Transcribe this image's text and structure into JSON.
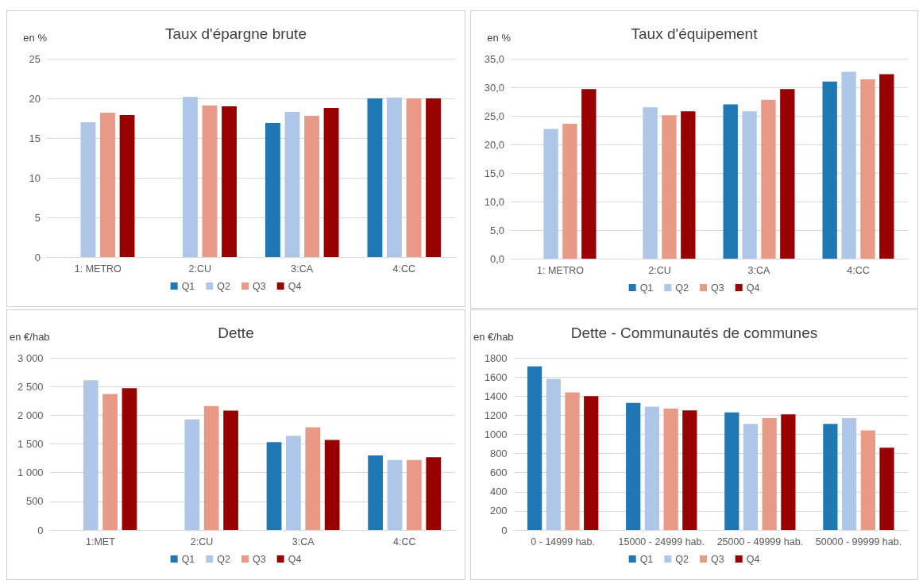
{
  "chart_data": [
    {
      "type": "bar",
      "title": "Taux d'épargne brute",
      "ylabel": "en %",
      "categories": [
        "1: METRO",
        "2:CU",
        "3:CA",
        "4:CC"
      ],
      "series": [
        {
          "name": "Q1",
          "color": "#1f77b4",
          "values": [
            null,
            null,
            16.9,
            20.0
          ]
        },
        {
          "name": "Q2",
          "color": "#aec7e8",
          "values": [
            17.0,
            20.2,
            18.3,
            20.1
          ]
        },
        {
          "name": "Q3",
          "color": "#e99a86",
          "values": [
            18.2,
            19.1,
            17.8,
            20.0
          ]
        },
        {
          "name": "Q4",
          "color": "#990000",
          "values": [
            17.9,
            19.0,
            18.8,
            20.0
          ]
        }
      ],
      "ylim": [
        0,
        25
      ],
      "yticks": [
        0,
        5,
        10,
        15,
        20,
        25
      ],
      "grid": "y",
      "legend": "bottom"
    },
    {
      "type": "bar",
      "title": "Taux d'équipement",
      "ylabel": "en %",
      "categories": [
        "1: METRO",
        "2:CU",
        "3:CA",
        "4:CC"
      ],
      "series": [
        {
          "name": "Q1",
          "color": "#1f77b4",
          "values": [
            null,
            null,
            27.0,
            31.0
          ]
        },
        {
          "name": "Q2",
          "color": "#aec7e8",
          "values": [
            22.7,
            26.5,
            25.8,
            32.7
          ]
        },
        {
          "name": "Q3",
          "color": "#e99a86",
          "values": [
            23.6,
            25.1,
            27.8,
            31.4
          ]
        },
        {
          "name": "Q4",
          "color": "#990000",
          "values": [
            29.7,
            25.8,
            29.7,
            32.3
          ]
        }
      ],
      "ylim": [
        0,
        35
      ],
      "yticks": [
        {
          "value": 0,
          "label": "0,0"
        },
        {
          "value": 5,
          "label": "5,0"
        },
        {
          "value": 10,
          "label": "10,0"
        },
        {
          "value": 15,
          "label": "15,0"
        },
        {
          "value": 20,
          "label": "20,0"
        },
        {
          "value": 25,
          "label": "25,0"
        },
        {
          "value": 30,
          "label": "30,0"
        },
        {
          "value": 35,
          "label": "35,0"
        }
      ],
      "grid": "y",
      "legend": "bottom"
    },
    {
      "type": "bar",
      "title": "Dette",
      "ylabel": "en €/hab",
      "categories": [
        "1:MET",
        "2:CU",
        "3:CA",
        "4:CC"
      ],
      "series": [
        {
          "name": "Q1",
          "color": "#1f77b4",
          "values": [
            null,
            null,
            1530,
            1300
          ]
        },
        {
          "name": "Q2",
          "color": "#aec7e8",
          "values": [
            2610,
            1930,
            1640,
            1220
          ]
        },
        {
          "name": "Q3",
          "color": "#e99a86",
          "values": [
            2370,
            2160,
            1790,
            1220
          ]
        },
        {
          "name": "Q4",
          "color": "#990000",
          "values": [
            2470,
            2080,
            1570,
            1270
          ]
        }
      ],
      "ylim": [
        0,
        3000
      ],
      "yticks": [
        0,
        500,
        {
          "value": 1000,
          "label": "1 000"
        },
        {
          "value": 1500,
          "label": "1 500"
        },
        {
          "value": 2000,
          "label": "2 000"
        },
        {
          "value": 2500,
          "label": "2 500"
        },
        {
          "value": 3000,
          "label": "3 000"
        }
      ],
      "grid": "y",
      "legend": "bottom"
    },
    {
      "type": "bar",
      "title": "Dette - Communautés de communes",
      "ylabel": "en €/hab",
      "categories": [
        "0 - 14999 hab.",
        "15000 - 24999 hab.",
        "25000 - 49999 hab.",
        "50000 - 99999 hab."
      ],
      "series": [
        {
          "name": "Q1",
          "color": "#1f77b4",
          "values": [
            1710,
            1330,
            1230,
            1110
          ]
        },
        {
          "name": "Q2",
          "color": "#aec7e8",
          "values": [
            1580,
            1290,
            1110,
            1170
          ]
        },
        {
          "name": "Q3",
          "color": "#e99a86",
          "values": [
            1440,
            1270,
            1170,
            1040
          ]
        },
        {
          "name": "Q4",
          "color": "#990000",
          "values": [
            1400,
            1250,
            1210,
            860
          ]
        }
      ],
      "ylim": [
        0,
        1800
      ],
      "yticks": [
        0,
        200,
        400,
        600,
        800,
        1000,
        1200,
        1400,
        1600,
        1800
      ],
      "grid": "y",
      "legend": "bottom"
    }
  ]
}
